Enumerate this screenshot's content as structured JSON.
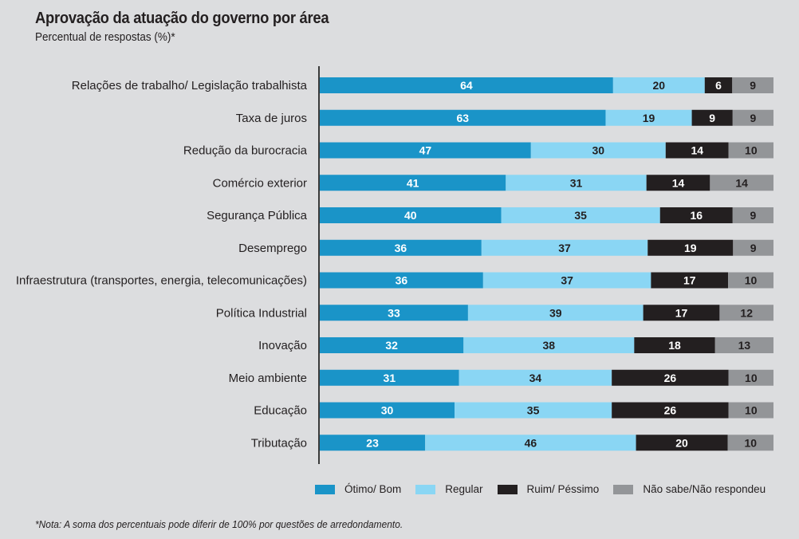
{
  "header": {
    "title": "Aprovação da atuação do governo por área",
    "subtitle": "Percentual de respostas (%)*"
  },
  "footer": {
    "note": "*Nota: A soma dos percentuais pode diferir de 100% por questões de arredondamento."
  },
  "colors": {
    "otimo_bom": "#1a94c8",
    "regular": "#8ad6f4",
    "ruim_pessimo": "#231f20",
    "nao_sabe": "#939598",
    "background": "#dcdddf"
  },
  "chart_data": {
    "type": "bar",
    "orientation": "horizontal",
    "stacked": true,
    "normalized": true,
    "title": "Aprovação da atuação do governo por área",
    "subtitle": "Percentual de respostas (%)*",
    "xlabel": "",
    "ylabel": "",
    "legend_position": "bottom",
    "grid": false,
    "categories": [
      "Relações de trabalho/ Legislação trabalhista",
      "Taxa de juros",
      "Redução da burocracia",
      "Comércio exterior",
      "Segurança Pública",
      "Desemprego",
      "Infraestrutura (transportes, energia, telecomunicações)",
      "Política Industrial",
      "Inovação",
      "Meio ambiente",
      "Educação",
      "Tributação"
    ],
    "series": [
      {
        "name": "Ótimo/ Bom",
        "color": "#1a94c8",
        "label_color": "#ffffff",
        "values": [
          64,
          63,
          47,
          41,
          40,
          36,
          36,
          33,
          32,
          31,
          30,
          23
        ]
      },
      {
        "name": "Regular",
        "color": "#8ad6f4",
        "label_color": "#231f20",
        "values": [
          20,
          19,
          30,
          31,
          35,
          37,
          37,
          39,
          38,
          34,
          35,
          46
        ]
      },
      {
        "name": "Ruim/ Péssimo",
        "color": "#231f20",
        "label_color": "#ffffff",
        "values": [
          6,
          9,
          14,
          14,
          16,
          19,
          17,
          17,
          18,
          26,
          26,
          20
        ]
      },
      {
        "name": "Não sabe/Não respondeu",
        "color": "#939598",
        "label_color": "#231f20",
        "values": [
          9,
          9,
          10,
          14,
          9,
          9,
          10,
          12,
          13,
          10,
          10,
          10
        ]
      }
    ]
  }
}
